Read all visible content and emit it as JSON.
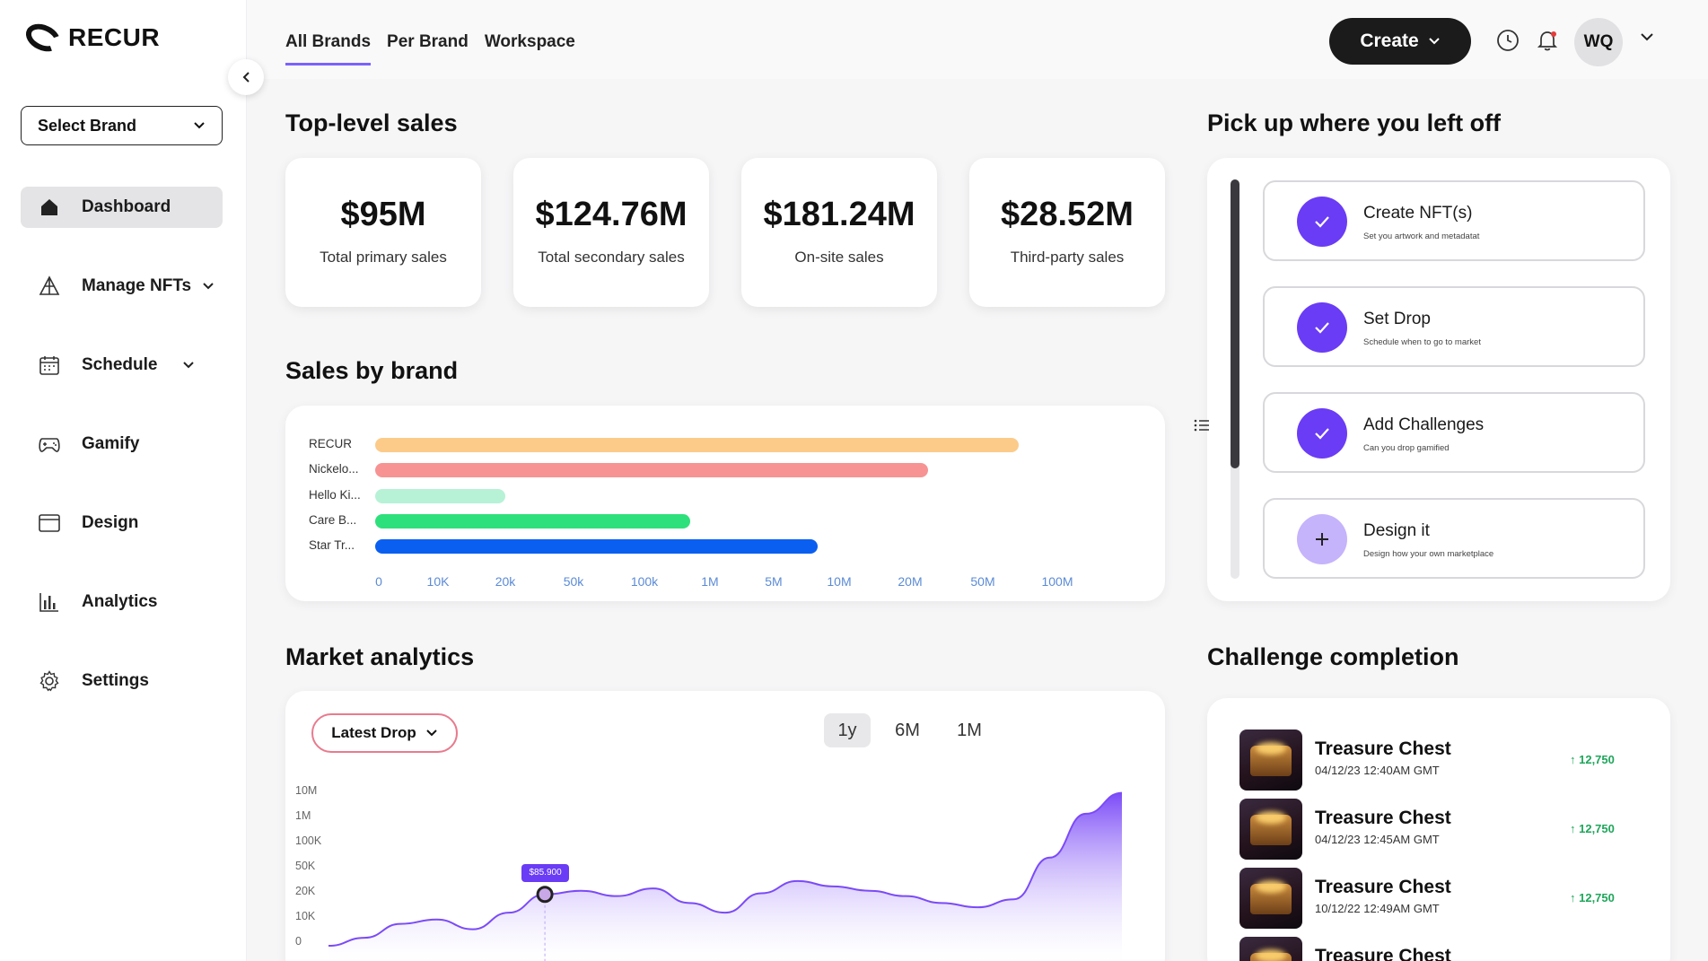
{
  "brand": {
    "name": "RECUR"
  },
  "sidebar": {
    "brand_select": "Select Brand",
    "items": [
      {
        "label": "Dashboard",
        "icon": "home-icon",
        "active": true
      },
      {
        "label": "Manage NFTs",
        "icon": "pyramid-icon",
        "expandable": true
      },
      {
        "label": "Schedule",
        "icon": "calendar-icon",
        "expandable": true
      },
      {
        "label": "Gamify",
        "icon": "gamepad-icon"
      },
      {
        "label": "Design",
        "icon": "window-icon"
      },
      {
        "label": "Analytics",
        "icon": "bar-chart-icon"
      },
      {
        "label": "Settings",
        "icon": "gear-icon"
      }
    ]
  },
  "header": {
    "tabs": [
      {
        "label": "All Brands",
        "active": true
      },
      {
        "label": "Per Brand"
      },
      {
        "label": "Workspace"
      }
    ],
    "create_label": "Create",
    "user_initials": "WQ"
  },
  "sales": {
    "title": "Top-level sales",
    "cards": [
      {
        "value": "$95M",
        "label": "Total primary sales"
      },
      {
        "value": "$124.76M",
        "label": "Total secondary sales"
      },
      {
        "value": "$181.24M",
        "label": "On-site sales"
      },
      {
        "value": "$28.52M",
        "label": "Third-party sales"
      }
    ]
  },
  "sales_by_brand": {
    "title": "Sales by brand",
    "ticks": [
      "0",
      "10K",
      "20k",
      "50k",
      "100k",
      "1M",
      "5M",
      "10M",
      "20M",
      "50M",
      "100M"
    ]
  },
  "chart_data": [
    {
      "type": "bar",
      "orientation": "horizontal",
      "categories": [
        "RECUR",
        "Nickelo...",
        "Hello Ki...",
        "Care B...",
        "Star Tr..."
      ],
      "values": [
        70000000,
        25000000,
        20000,
        500000,
        8000000
      ],
      "colors": [
        "#fccb8a",
        "#f79393",
        "#b7f2d6",
        "#2ee07b",
        "#0a5ff0"
      ],
      "x_scale": "log",
      "x_ticks": [
        "0",
        "10K",
        "20k",
        "50k",
        "100k",
        "1M",
        "5M",
        "10M",
        "20M",
        "50M",
        "100M"
      ]
    },
    {
      "type": "area",
      "y_scale": "log",
      "y_ticks": [
        "10M",
        "1M",
        "100K",
        "50K",
        "20K",
        "10K",
        "0"
      ],
      "values": [
        10000,
        14000,
        25000,
        30000,
        20000,
        40000,
        85900,
        100000,
        80000,
        110000,
        60000,
        40000,
        90000,
        150000,
        120000,
        100000,
        80000,
        60000,
        50000,
        70000,
        400000,
        2500000,
        6000000
      ],
      "highlight": {
        "label": "$85.900",
        "index": 6
      },
      "color": "#7b4bf7"
    }
  ],
  "market": {
    "title": "Market analytics",
    "select_label": "Latest Drop",
    "ranges": [
      {
        "label": "1y",
        "active": true
      },
      {
        "label": "6M"
      },
      {
        "label": "1M"
      }
    ],
    "tooltip": "$85.900"
  },
  "pickup": {
    "title": "Pick up where you left off",
    "steps": [
      {
        "title": "Create NFT(s)",
        "subtitle": "Set you artwork and metadatat",
        "done": true
      },
      {
        "title": "Set Drop",
        "subtitle": "Schedule when  to go to market",
        "done": true
      },
      {
        "title": "Add Challenges",
        "subtitle": "Can you drop gamified",
        "done": true
      },
      {
        "title": "Design it",
        "subtitle": "Design how your own marketplace",
        "done": false
      }
    ]
  },
  "challenges": {
    "title": "Challenge completion",
    "rows": [
      {
        "title": "Treasure Chest",
        "date": "04/12/23 12:40AM GMT",
        "value": "12,750"
      },
      {
        "title": "Treasure Chest",
        "date": "04/12/23 12:45AM GMT",
        "value": "12,750"
      },
      {
        "title": "Treasure Chest",
        "date": "10/12/22 12:49AM GMT",
        "value": "12,750"
      },
      {
        "title": "Treasure Chest",
        "date": "",
        "value": ""
      }
    ]
  },
  "colors": {
    "accent": "#7b61ff",
    "purple": "#6a3cf5",
    "dark": "#1b1b1b",
    "positive": "#1ea65a"
  }
}
